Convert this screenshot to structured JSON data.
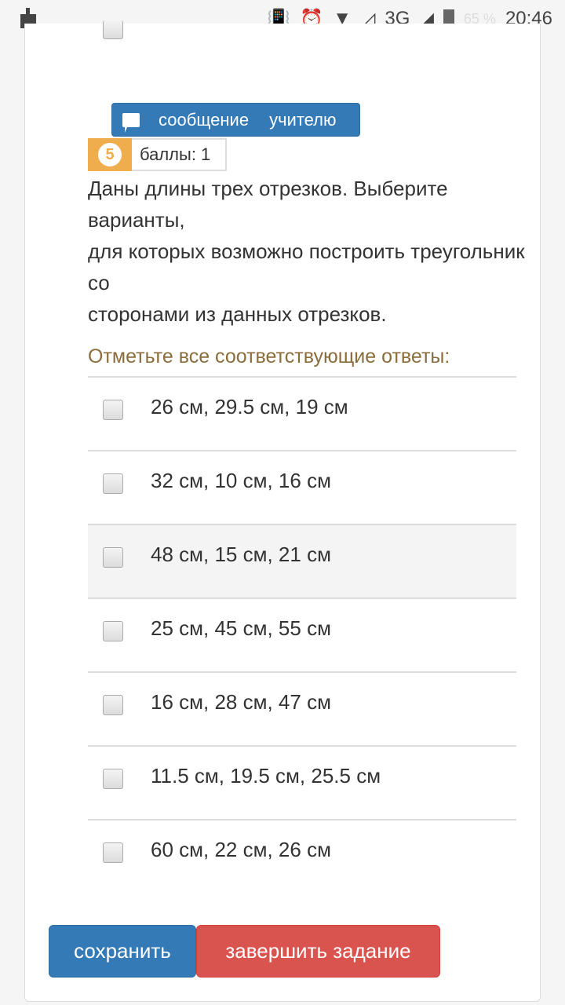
{
  "status_bar": {
    "battery": "65 %",
    "time": "20:46",
    "network": "3G"
  },
  "message_button": {
    "word1": "сообщение",
    "word2": "учителю"
  },
  "question": {
    "number": "5",
    "points": "баллы: 1",
    "lines": [
      "Даны длины трех отрезков. Выберите варианты,",
      "для которых возможно построить треугольник со",
      "сторонами из данных отрезков."
    ],
    "instruction": "Отметьте все соответствующие ответы:",
    "options": [
      {
        "label": "26 см, 29.5 см, 19 см",
        "checked": false
      },
      {
        "label": "32 см, 10 см, 16 см",
        "checked": false
      },
      {
        "label": "48 см, 15 см, 21 см",
        "checked": false
      },
      {
        "label": "25 см, 45 см, 55 см",
        "checked": false
      },
      {
        "label": "16 см, 28 см, 47 см",
        "checked": false
      },
      {
        "label": "11.5 см, 19.5 см, 25.5 см",
        "checked": false
      },
      {
        "label": "60 см, 22 см, 26 см",
        "checked": false
      }
    ]
  },
  "buttons": {
    "save": "сохранить",
    "finish": "завершить задание"
  }
}
